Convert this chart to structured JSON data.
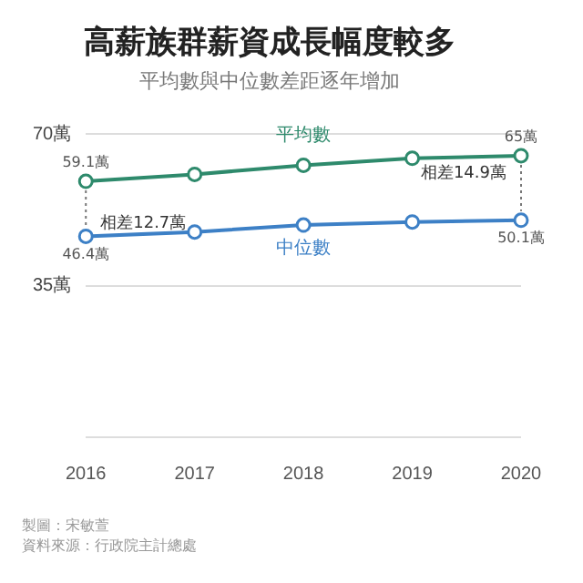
{
  "chart_data": {
    "type": "line",
    "title": "高薪族群薪資成長幅度較多",
    "subtitle": "平均數與中位數差距逐年增加",
    "categories": [
      "2016",
      "2017",
      "2018",
      "2019",
      "2020"
    ],
    "series": [
      {
        "name": "平均數",
        "color": "#2e8a6c",
        "values": [
          59.1,
          60.7,
          62.8,
          64.4,
          65
        ],
        "value_labels": [
          "59.1萬",
          null,
          null,
          null,
          "65萬"
        ]
      },
      {
        "name": "中位數",
        "color": "#3d80c6",
        "values": [
          46.4,
          47.4,
          49.0,
          49.7,
          50.1
        ],
        "value_labels": [
          "46.4萬",
          null,
          null,
          null,
          "50.1萬"
        ]
      }
    ],
    "ylim": [
      0,
      70
    ],
    "yticks": [
      {
        "value": 0,
        "label": null
      },
      {
        "value": 35,
        "label": "35萬"
      },
      {
        "value": 70,
        "label": "70萬"
      }
    ],
    "grid": "y",
    "marker": "circle",
    "line_style": "solid",
    "annotations": [
      "相差12.7萬",
      "相差14.9萬",
      "製圖：宋敏萱",
      "資料來源：行政院主計總處"
    ]
  }
}
